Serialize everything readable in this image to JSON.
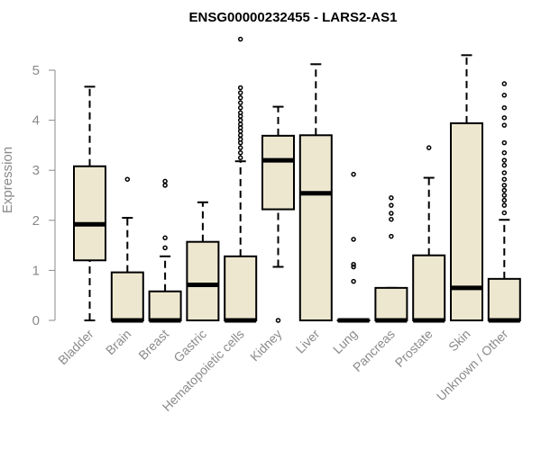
{
  "chart_data": {
    "type": "box",
    "title": "ENSG00000232455 - LARS2-AS1",
    "xlabel": "",
    "ylabel": "Expression",
    "ylim": [
      0,
      5.6
    ],
    "yticks": [
      "0",
      "1",
      "2",
      "3",
      "4",
      "5"
    ],
    "box_fill": "#ede7d0",
    "axis_color": "#8a8a8a",
    "categories": [
      "Bladder",
      "Brain",
      "Breast",
      "Gastric",
      "Hematopoietic cells",
      "Kidney",
      "Liver",
      "Lung",
      "Pancreas",
      "Prostate",
      "Skin",
      "Unknown / Other"
    ],
    "boxes": [
      {
        "category": "Bladder",
        "min": 0,
        "q1": 1.2,
        "median": 1.92,
        "q3": 3.08,
        "max": 4.67,
        "outliers": []
      },
      {
        "category": "Brain",
        "min": 0,
        "q1": 0,
        "median": 0,
        "q3": 0.96,
        "max": 2.05,
        "outliers": [
          2.82
        ]
      },
      {
        "category": "Breast",
        "min": 0,
        "q1": 0,
        "median": 0,
        "q3": 0.58,
        "max": 1.28,
        "outliers": [
          1.45,
          1.65,
          2.7,
          2.78
        ]
      },
      {
        "category": "Gastric",
        "min": 0,
        "q1": 0,
        "median": 0.71,
        "q3": 1.57,
        "max": 2.36,
        "outliers": []
      },
      {
        "category": "Hematopoietic cells",
        "min": 0,
        "q1": 0,
        "median": 0,
        "q3": 1.28,
        "max": 3.18,
        "outliers": [
          3.25,
          3.35,
          3.45,
          3.55,
          3.62,
          3.7,
          3.78,
          3.85,
          3.92,
          4.0,
          4.08,
          4.15,
          4.25,
          4.35,
          4.45,
          4.55,
          4.65,
          5.62
        ]
      },
      {
        "category": "Kidney",
        "min": 1.07,
        "q1": 2.22,
        "median": 3.2,
        "q3": 3.69,
        "max": 4.27,
        "outliers": [
          0
        ]
      },
      {
        "category": "Liver",
        "min": 0,
        "q1": 0,
        "median": 2.54,
        "q3": 3.7,
        "max": 5.12,
        "outliers": []
      },
      {
        "category": "Lung",
        "min": 0,
        "q1": 0,
        "median": 0,
        "q3": 0,
        "max": 0,
        "outliers": [
          0.78,
          1.07,
          1.12,
          1.62,
          2.92
        ]
      },
      {
        "category": "Pancreas",
        "min": 0,
        "q1": 0,
        "median": 0,
        "q3": 0.65,
        "max": 0.65,
        "outliers": [
          1.68,
          2.02,
          2.14,
          2.3,
          2.45
        ]
      },
      {
        "category": "Prostate",
        "min": 0,
        "q1": 0,
        "median": 0,
        "q3": 1.3,
        "max": 2.85,
        "outliers": [
          3.45
        ]
      },
      {
        "category": "Skin",
        "min": 0,
        "q1": 0,
        "median": 0.65,
        "q3": 3.94,
        "max": 5.3,
        "outliers": []
      },
      {
        "category": "Unknown / Other",
        "min": 0,
        "q1": 0,
        "median": 0,
        "q3": 0.83,
        "max": 2.01,
        "outliers": [
          2.15,
          2.3,
          2.4,
          2.5,
          2.6,
          2.7,
          2.82,
          2.95,
          3.1,
          3.2,
          3.35,
          3.55,
          3.9,
          4.05,
          4.25,
          4.5,
          4.73
        ]
      }
    ]
  }
}
